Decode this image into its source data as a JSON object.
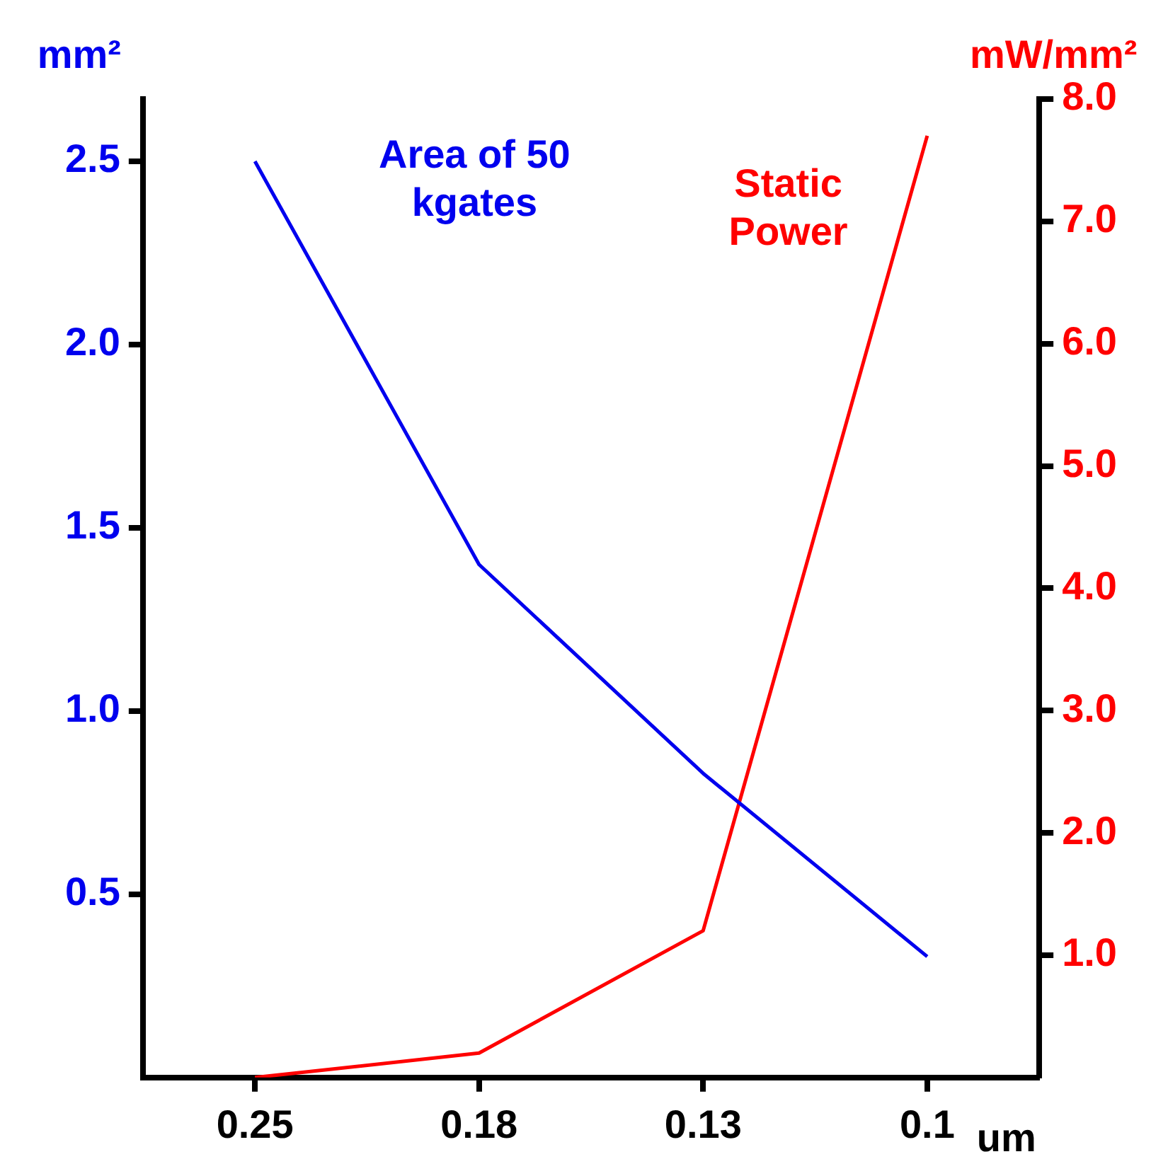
{
  "chart_data": {
    "type": "line",
    "categories": [
      "0.25",
      "0.18",
      "0.13",
      "0.1"
    ],
    "xlabel": "um",
    "ylabel": "mm²",
    "y2label": "mW/mm²",
    "series": [
      {
        "name": "Area of 50 kgates",
        "color": "#0000ee",
        "values": [
          2.5,
          1.4,
          0.83,
          0.33
        ]
      },
      {
        "name": "Static Power",
        "color": "#ff0000",
        "values": [
          0.0,
          0.2,
          1.2,
          7.7
        ],
        "axis": "y2"
      }
    ],
    "ylim": [
      0,
      2.67
    ],
    "yticks": [
      {
        "value": 0.5,
        "label": "0.5"
      },
      {
        "value": 1.0,
        "label": "1.0"
      },
      {
        "value": 1.5,
        "label": "1.5"
      },
      {
        "value": 2.0,
        "label": "2.0"
      },
      {
        "value": 2.5,
        "label": "2.5"
      }
    ],
    "y2lim": [
      0,
      8
    ],
    "y2ticks": [
      {
        "value": 1,
        "label": "1.0"
      },
      {
        "value": 2,
        "label": "2.0"
      },
      {
        "value": 3,
        "label": "3.0"
      },
      {
        "value": 4,
        "label": "4.0"
      },
      {
        "value": 5,
        "label": "5.0"
      },
      {
        "value": 6,
        "label": "6.0"
      },
      {
        "value": 7,
        "label": "7.0"
      },
      {
        "value": 8,
        "label": "8.0"
      }
    ],
    "grid": false,
    "legend": false,
    "marker": "none",
    "line_style": "solid"
  }
}
